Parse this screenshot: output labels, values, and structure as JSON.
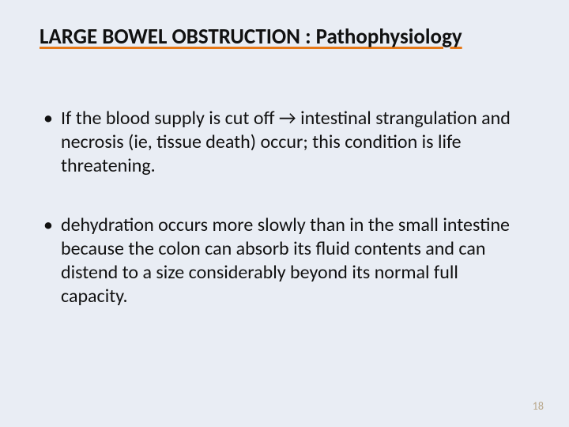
{
  "slide": {
    "background_color": "#e9edf4",
    "title": {
      "text": "LARGE BOWEL OBSTRUCTION : Pathophysiology",
      "font_size": 27,
      "font_weight": "bold",
      "text_color": "#111111",
      "underline_color": "#e67817",
      "underline_thickness": 3
    },
    "bullets": [
      {
        "marker": "•",
        "text": "If the blood supply is cut off → intestinal strangulation and necrosis (ie, tissue death) occur; this condition is life threatening."
      },
      {
        "marker": "•",
        "text": "dehydration occurs more slowly than in the small intestine because the colon can absorb its fluid contents and can distend to a size considerably beyond its normal full capacity."
      }
    ],
    "body_font_size": 24,
    "body_text_color": "#111111",
    "page_number": {
      "value": "18",
      "font_size": 14,
      "color": "#b9a88c"
    }
  }
}
